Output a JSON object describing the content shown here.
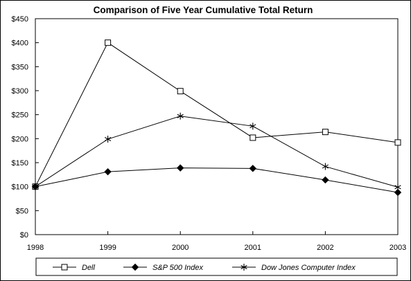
{
  "chart_data": {
    "type": "line",
    "title": "Comparison of Five Year Cumulative Total Return",
    "xlabel": "",
    "ylabel": "",
    "categories": [
      "1998",
      "1999",
      "2000",
      "2001",
      "2002",
      "2003"
    ],
    "y_ticks": [
      "$0",
      "$50",
      "$100",
      "$150",
      "$200",
      "$250",
      "$300",
      "$350",
      "$400",
      "$450"
    ],
    "ylim": [
      0,
      450
    ],
    "grid": false,
    "legend_position": "bottom",
    "series": [
      {
        "name": "Dell",
        "marker": "open-square",
        "values": [
          100,
          400,
          299,
          202,
          214,
          192
        ]
      },
      {
        "name": "S&P 500 Index",
        "marker": "filled-diamond",
        "values": [
          100,
          131,
          139,
          138,
          114,
          88
        ]
      },
      {
        "name": "Dow Jones Computer Index",
        "marker": "asterisk",
        "values": [
          100,
          199,
          247,
          226,
          142,
          99
        ]
      }
    ]
  }
}
